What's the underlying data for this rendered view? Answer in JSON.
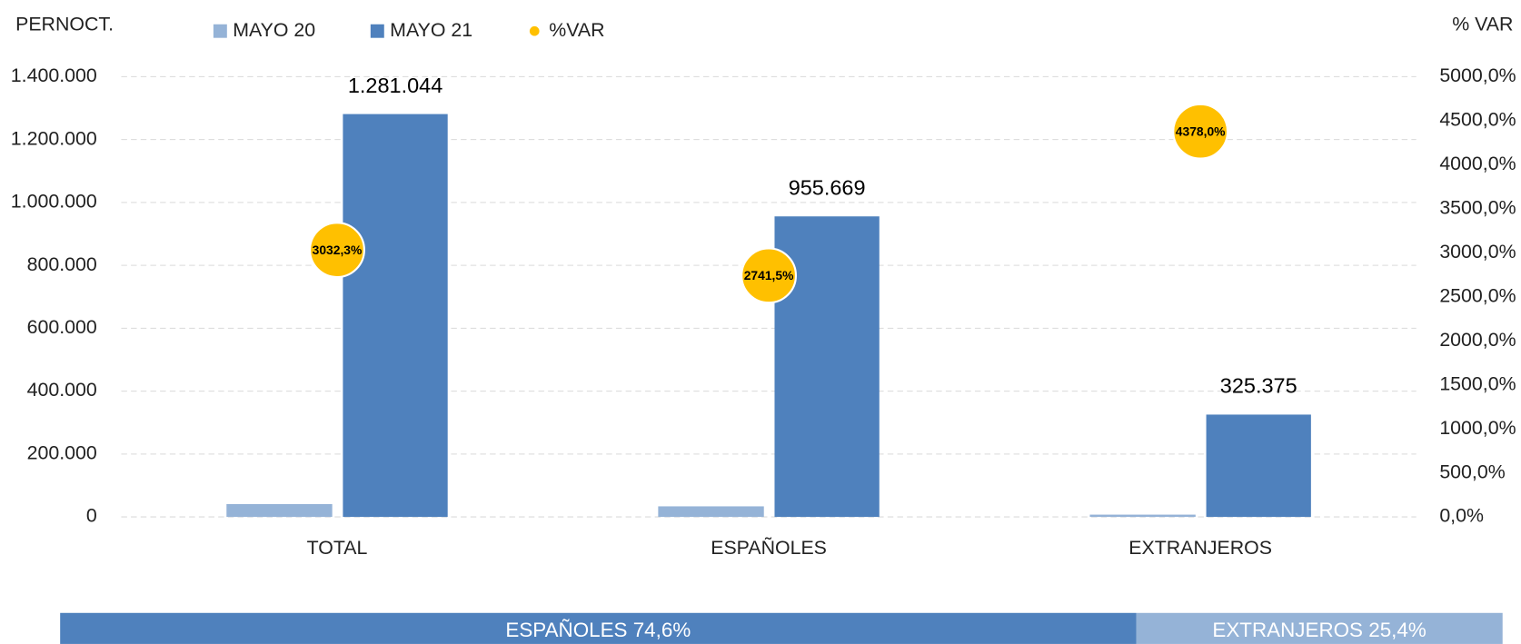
{
  "chart_data": {
    "type": "bar",
    "y_axis_title": "PERNOCT.",
    "y2_axis_title": "% VAR",
    "categories": [
      "TOTAL",
      "ESPAÑOLES",
      "EXTRANJEROS"
    ],
    "series": [
      {
        "name": "MAYO 20",
        "color": "#95b3d7",
        "values": [
          40898,
          33632,
          7266
        ]
      },
      {
        "name": "MAYO 21",
        "color": "#4f81bd",
        "values": [
          1281044,
          955669,
          325375
        ],
        "value_labels": [
          "1.281.044",
          "955.669",
          "325.375"
        ]
      },
      {
        "name": "%VAR",
        "color": "#ffc000",
        "type": "scatter",
        "axis": "y2",
        "values": [
          3032.3,
          2741.5,
          4378.0
        ],
        "value_labels": [
          "3032,3%",
          "2741,5%",
          "4378,0%"
        ]
      }
    ],
    "ylim": [
      0,
      1400000
    ],
    "yticks": [
      0,
      {
        "value": 200000,
        "label": "200.000"
      },
      {
        "value": 400000,
        "label": "400.000"
      },
      {
        "value": 600000,
        "label": "600.000"
      },
      {
        "value": 800000,
        "label": "800.000"
      },
      {
        "value": 1000000,
        "label": "1.000.000"
      },
      {
        "value": 1200000,
        "label": "1.200.000"
      },
      {
        "value": 1400000,
        "label": "1.400.000"
      }
    ],
    "y2lim": [
      0,
      5000
    ],
    "y2ticks": [
      {
        "value": 0,
        "label": "0,0%"
      },
      {
        "value": 500,
        "label": "500,0%"
      },
      {
        "value": 1000,
        "label": "1000,0%"
      },
      {
        "value": 1500,
        "label": "1500,0%"
      },
      {
        "value": 2000,
        "label": "2000,0%"
      },
      {
        "value": 2500,
        "label": "2500,0%"
      },
      {
        "value": 3000,
        "label": "3000,0%"
      },
      {
        "value": 3500,
        "label": "3500,0%"
      },
      {
        "value": 4000,
        "label": "4000,0%"
      },
      {
        "value": 4500,
        "label": "4500,0%"
      },
      {
        "value": 5000,
        "label": "5000,0%"
      }
    ],
    "grid": true,
    "share_bar": [
      {
        "label": "ESPAÑOLES 74,6%",
        "value": 74.6,
        "color": "#4f81bd"
      },
      {
        "label": "EXTRANJEROS 25,4%",
        "value": 25.4,
        "color": "#95b3d7"
      }
    ]
  }
}
